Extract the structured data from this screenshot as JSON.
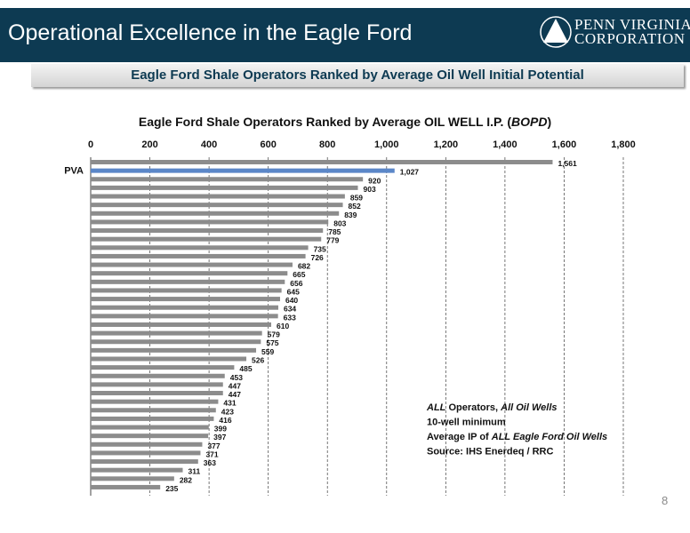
{
  "header": {
    "title": "Operational Excellence in the Eagle Ford",
    "logo_line1": "PENN VIRGINIA",
    "logo_line2": "CORPORATION",
    "logo_icon": "triangle-in-circle-icon"
  },
  "subtitle": "Eagle Ford Shale Operators Ranked by Average Oil Well Initial Potential",
  "page_number": "8",
  "colors": {
    "header_bg": "#0d3a52",
    "bar": "#8c8c8c",
    "highlight_bar": "#5b87c8"
  },
  "chart_data": {
    "type": "bar",
    "orientation": "horizontal",
    "title_prefix": "Eagle Ford Shale Operators Ranked by Average OIL WELL I.P. (",
    "title_unit": "BOPD",
    "title_suffix": ")",
    "xlim": [
      0,
      1800
    ],
    "x_ticks": [
      "0",
      "200",
      "400",
      "600",
      "800",
      "1,000",
      "1,200",
      "1,400",
      "1,600",
      "1,800"
    ],
    "x_axis_position": "top",
    "grid": "vertical dashed",
    "categories": [
      "",
      "PVA",
      "",
      "",
      "",
      "",
      "",
      "",
      "",
      "",
      "",
      "",
      "",
      "",
      "",
      "",
      "",
      "",
      "",
      "",
      "",
      "",
      "",
      "",
      "",
      "",
      "",
      "",
      "",
      "",
      "",
      "",
      "",
      "",
      "",
      "",
      "",
      "",
      ""
    ],
    "highlight_index": 1,
    "values": [
      1561,
      1027,
      920,
      903,
      859,
      852,
      839,
      803,
      785,
      779,
      735,
      726,
      682,
      665,
      656,
      645,
      640,
      634,
      633,
      610,
      579,
      575,
      559,
      526,
      485,
      453,
      447,
      447,
      431,
      423,
      416,
      399,
      397,
      377,
      371,
      363,
      311,
      282,
      235
    ],
    "value_labels": [
      "1,561",
      "1,027",
      "920",
      "903",
      "859",
      "852",
      "839",
      "803",
      "785",
      "779",
      "735",
      "726",
      "682",
      "665",
      "656",
      "645",
      "640",
      "634",
      "633",
      "610",
      "579",
      "575",
      "559",
      "526",
      "485",
      "453",
      "447",
      "447",
      "431",
      "423",
      "416",
      "399",
      "397",
      "377",
      "371",
      "363",
      "311",
      "282",
      "235"
    ],
    "annotation": [
      {
        "em": "ALL",
        "text": " Operators, ",
        "em2": "All Oil Wells",
        "text2": ""
      },
      {
        "em": "",
        "text": "10-well minimum",
        "em2": "",
        "text2": ""
      },
      {
        "em": "",
        "text": "Average IP of ",
        "em2": "ALL Eagle Ford Oil Wells",
        "text2": ""
      },
      {
        "em": "",
        "text": "Source: IHS Enerdeq / RRC",
        "em2": "",
        "text2": ""
      }
    ]
  }
}
